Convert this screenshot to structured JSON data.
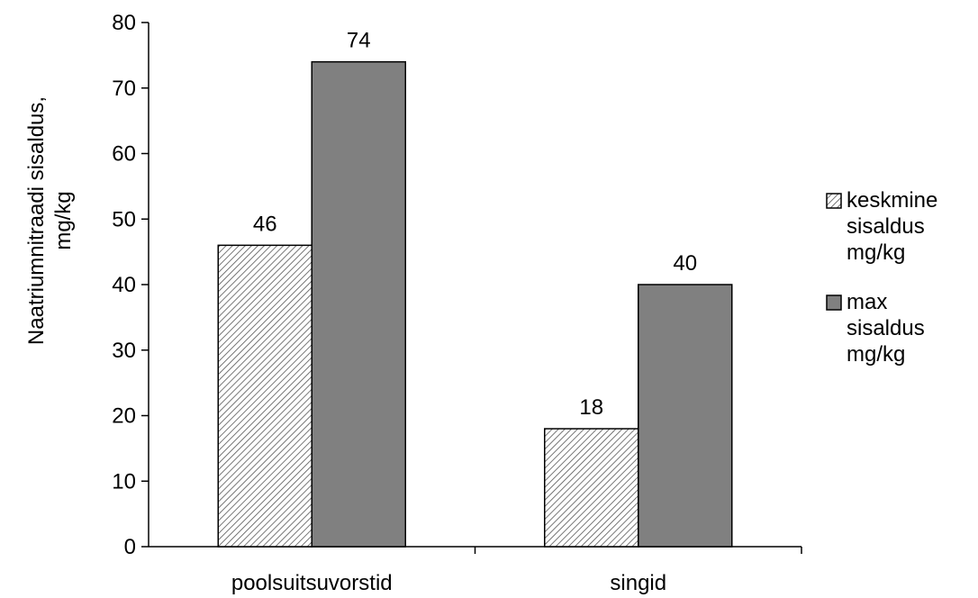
{
  "chart_data": {
    "type": "bar",
    "title": "",
    "xlabel": "",
    "ylabel": "Naatriumnitraadi sisaldus, mg/kg",
    "ylabel_lines": [
      "Naatriumnitraadi sisaldus,",
      "mg/kg"
    ],
    "ylim": [
      0,
      80
    ],
    "yticks": [
      0,
      10,
      20,
      30,
      40,
      50,
      60,
      70,
      80
    ],
    "grid": false,
    "legend_position": "right",
    "categories": [
      "poolsuitsuvorstid",
      "singid"
    ],
    "series": [
      {
        "name": "keskmine sisaldus mg/kg",
        "legend_lines": [
          "keskmine",
          "sisaldus",
          "mg/kg"
        ],
        "values": [
          46,
          18
        ],
        "fill": "hatched",
        "color": "#ffffff",
        "pattern_color": "#555555"
      },
      {
        "name": "max sisaldus mg/kg",
        "legend_lines": [
          "max",
          "sisaldus",
          "mg/kg"
        ],
        "values": [
          74,
          40
        ],
        "fill": "solid",
        "color": "#808080"
      }
    ],
    "data_labels": true
  }
}
